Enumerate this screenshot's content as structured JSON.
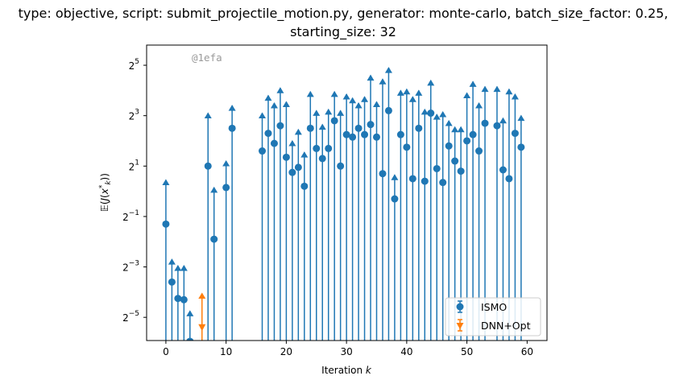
{
  "chart_data": {
    "type": "scatter",
    "title": "type: objective, script: submit_projectile_motion.py, generator: monte-carlo, batch_size_factor: 0.25,",
    "subtitle": "starting_size: 32",
    "xlabel": "Iteration k",
    "ylabel": "E(J(x*_k))",
    "y_scale": "log2",
    "xlim": [
      -3.2,
      63.3
    ],
    "ylim_log2": [
      -5.92,
      5.8
    ],
    "x_ticks": [
      0,
      10,
      20,
      30,
      40,
      50,
      60
    ],
    "y_ticks_log2": [
      -5,
      -3,
      -1,
      1,
      3,
      5
    ],
    "watermark": "@1efa",
    "legend_position": "lower-right",
    "grid": false,
    "colors": {
      "ISMO": "#1f77b4",
      "DNN+Opt": "#ff7f0e"
    },
    "series": [
      {
        "name": "ISMO",
        "marker": "circle",
        "x": [
          0,
          1,
          2,
          3,
          4,
          7,
          8,
          10,
          11,
          16,
          17,
          18,
          19,
          20,
          21,
          22,
          23,
          24,
          25,
          26,
          27,
          28,
          29,
          30,
          31,
          32,
          33,
          34,
          35,
          36,
          37,
          38,
          39,
          40,
          41,
          42,
          43,
          44,
          45,
          46,
          47,
          48,
          49,
          50,
          51,
          52,
          53,
          55,
          56,
          57,
          58,
          59
        ],
        "y_log2": [
          -1.3,
          -3.6,
          -4.25,
          -4.3,
          -5.95,
          1.0,
          -1.9,
          0.15,
          2.5,
          1.6,
          2.3,
          1.9,
          2.6,
          1.35,
          0.75,
          0.95,
          0.2,
          2.5,
          1.7,
          1.3,
          1.7,
          2.8,
          1.0,
          2.25,
          2.15,
          2.5,
          2.25,
          2.65,
          2.15,
          0.7,
          3.2,
          -0.3,
          2.25,
          1.75,
          0.5,
          2.5,
          0.4,
          3.1,
          0.9,
          0.35,
          1.8,
          1.2,
          0.8,
          2.0,
          2.25,
          1.6,
          2.7,
          2.6,
          0.85,
          0.5,
          2.3,
          1.75
        ],
        "err_top_log2": [
          0.45,
          -2.7,
          -2.95,
          -2.95,
          -4.75,
          3.1,
          0.15,
          1.2,
          3.4,
          3.1,
          3.8,
          3.5,
          4.1,
          3.55,
          2.0,
          2.45,
          1.55,
          3.95,
          3.2,
          2.65,
          3.25,
          3.95,
          3.2,
          3.85,
          3.7,
          3.5,
          3.75,
          4.6,
          3.55,
          4.45,
          4.9,
          0.65,
          4.0,
          4.05,
          3.75,
          4.0,
          3.25,
          4.4,
          3.05,
          3.15,
          2.8,
          2.55,
          2.55,
          3.9,
          4.35,
          3.5,
          4.15,
          4.15,
          2.9,
          4.05,
          3.85,
          3.0
        ]
      },
      {
        "name": "DNN+Opt",
        "marker": "triangle-down",
        "x": [
          6
        ],
        "y_log2": [
          -5.4
        ],
        "err_top_log2": [
          -4.05
        ]
      }
    ]
  }
}
